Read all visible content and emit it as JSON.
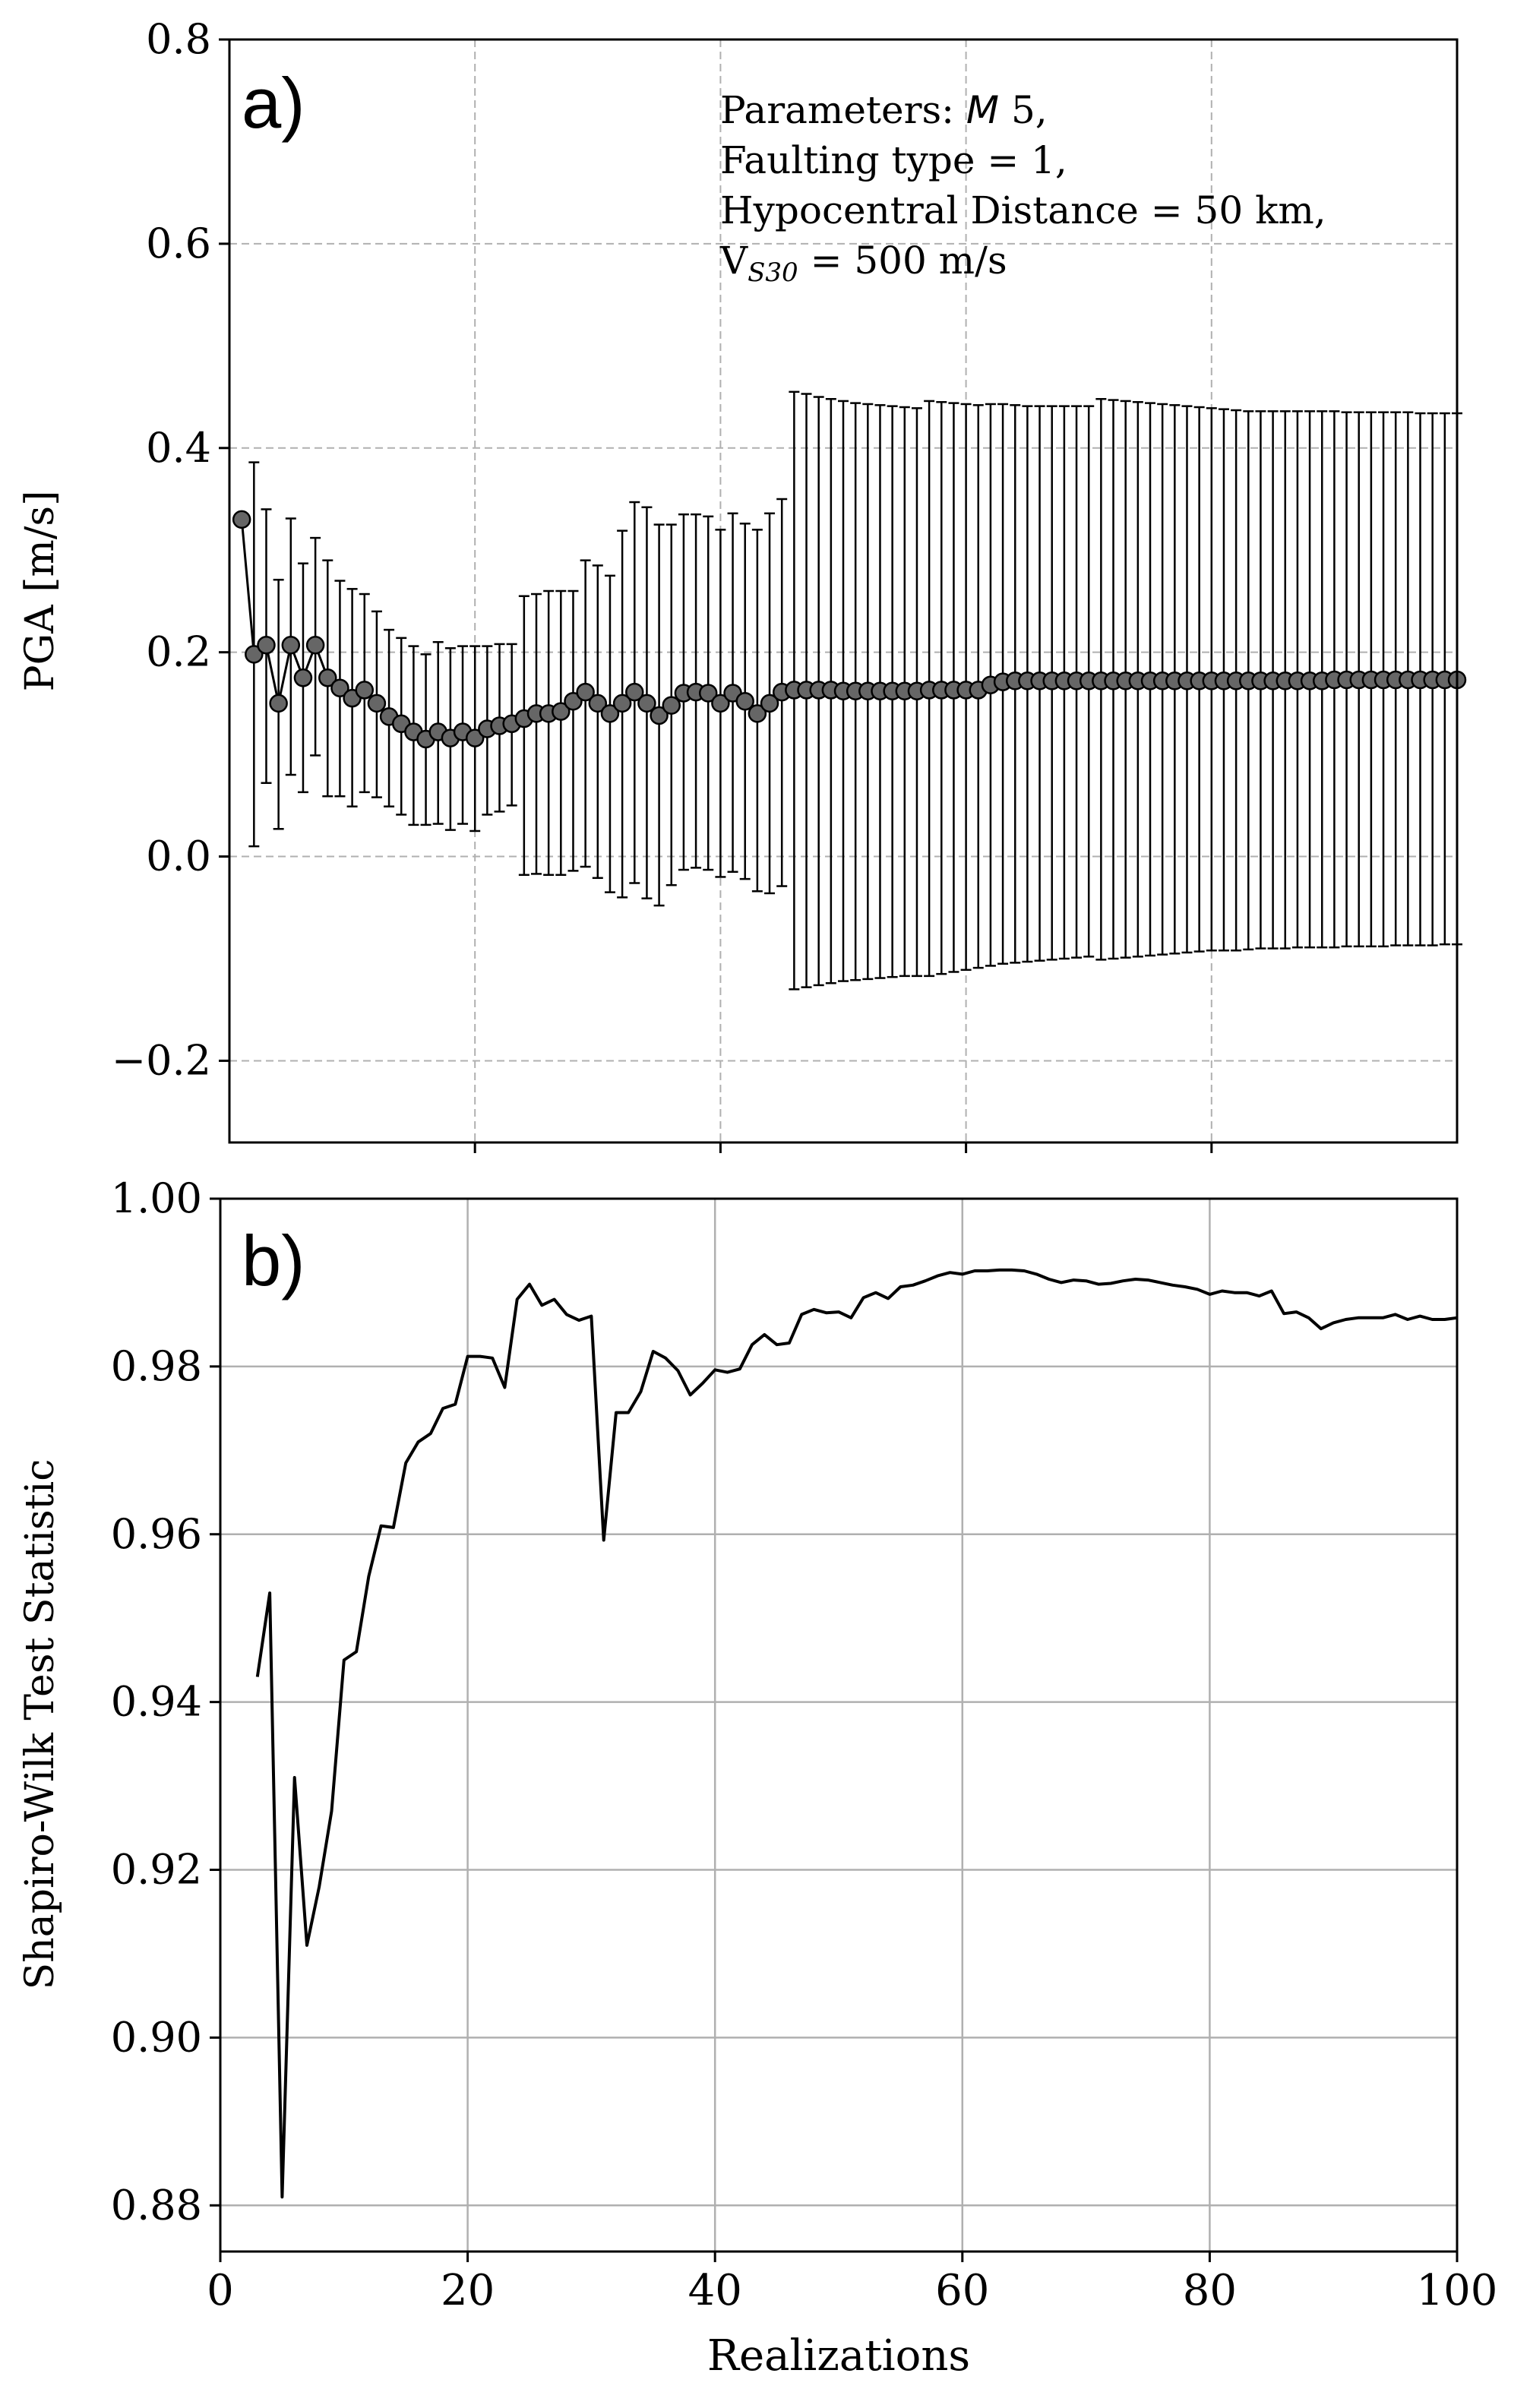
{
  "chart_data": [
    {
      "panel_label": "a)",
      "type": "line",
      "style": "errorbar",
      "xlabel": "",
      "ylabel": "PGA [m/s]",
      "xlim": [
        0,
        100
      ],
      "ylim": [
        -0.28,
        0.8
      ],
      "xticks": [
        20,
        40,
        60,
        80
      ],
      "yticks": [
        -0.2,
        0.0,
        0.2,
        0.4,
        0.6,
        0.8
      ],
      "ytick_labels": [
        "−0.2",
        "0.0",
        "0.2",
        "0.4",
        "0.6",
        "0.8"
      ],
      "grid": "dashed",
      "annotation": {
        "line1_prefix": "Parameters: ",
        "line1_symbol": "M",
        "line1_suffix": " 5,",
        "line2": "Faulting type = 1,",
        "line3": "Hypocentral Distance = 50 km,",
        "line4_base": "V",
        "line4_sub": "S30",
        "line4_rest": " = 500 m/s"
      },
      "colors": {
        "marker_fill": "#666666",
        "line": "#000000",
        "grid": "#b0b0b0"
      },
      "x": [
        1,
        2,
        3,
        4,
        5,
        6,
        7,
        8,
        9,
        10,
        11,
        12,
        13,
        14,
        15,
        16,
        17,
        18,
        19,
        20,
        21,
        22,
        23,
        24,
        25,
        26,
        27,
        28,
        29,
        30,
        31,
        32,
        33,
        34,
        35,
        36,
        37,
        38,
        39,
        40,
        41,
        42,
        43,
        44,
        45,
        46,
        47,
        48,
        49,
        50,
        51,
        52,
        53,
        54,
        55,
        56,
        57,
        58,
        59,
        60,
        61,
        62,
        63,
        64,
        65,
        66,
        67,
        68,
        69,
        70,
        71,
        72,
        73,
        74,
        75,
        76,
        77,
        78,
        79,
        80,
        81,
        82,
        83,
        84,
        85,
        86,
        87,
        88,
        89,
        90,
        91,
        92,
        93,
        94,
        95,
        96,
        97,
        98,
        99,
        100
      ],
      "mean": [
        0.33,
        0.198,
        0.207,
        0.15,
        0.207,
        0.175,
        0.207,
        0.175,
        0.165,
        0.155,
        0.163,
        0.15,
        0.137,
        0.13,
        0.122,
        0.115,
        0.122,
        0.116,
        0.122,
        0.116,
        0.125,
        0.128,
        0.13,
        0.135,
        0.14,
        0.14,
        0.142,
        0.152,
        0.161,
        0.15,
        0.14,
        0.15,
        0.161,
        0.15,
        0.138,
        0.148,
        0.16,
        0.161,
        0.16,
        0.15,
        0.16,
        0.152,
        0.14,
        0.15,
        0.161,
        0.163,
        0.163,
        0.163,
        0.163,
        0.162,
        0.162,
        0.162,
        0.162,
        0.162,
        0.162,
        0.162,
        0.163,
        0.163,
        0.163,
        0.163,
        0.163,
        0.168,
        0.171,
        0.172,
        0.172,
        0.172,
        0.172,
        0.172,
        0.172,
        0.172,
        0.172,
        0.172,
        0.172,
        0.172,
        0.172,
        0.172,
        0.172,
        0.172,
        0.172,
        0.172,
        0.172,
        0.172,
        0.172,
        0.172,
        0.172,
        0.172,
        0.172,
        0.172,
        0.172,
        0.173,
        0.173,
        0.173,
        0.173,
        0.173,
        0.173,
        0.173,
        0.173,
        0.173,
        0.173,
        0.173
      ],
      "upper": [
        null,
        0.386,
        0.34,
        0.271,
        0.331,
        0.287,
        0.312,
        0.29,
        0.27,
        0.262,
        0.257,
        0.24,
        0.222,
        0.214,
        0.206,
        0.198,
        0.21,
        0.204,
        0.206,
        0.206,
        0.206,
        0.208,
        0.208,
        0.255,
        0.257,
        0.26,
        0.26,
        0.26,
        0.29,
        0.285,
        0.275,
        0.319,
        0.347,
        0.342,
        0.325,
        0.325,
        0.335,
        0.335,
        0.333,
        0.32,
        0.336,
        0.326,
        0.32,
        0.336,
        0.35,
        0.455,
        0.453,
        0.45,
        0.448,
        0.446,
        0.444,
        0.443,
        0.442,
        0.441,
        0.44,
        0.439,
        0.446,
        0.445,
        0.444,
        0.443,
        0.442,
        0.443,
        0.443,
        0.442,
        0.441,
        0.441,
        0.441,
        0.441,
        0.441,
        0.441,
        0.448,
        0.447,
        0.446,
        0.445,
        0.444,
        0.443,
        0.442,
        0.441,
        0.44,
        0.439,
        0.438,
        0.437,
        0.436,
        0.436,
        0.436,
        0.436,
        0.436,
        0.436,
        0.436,
        0.436,
        0.435,
        0.435,
        0.435,
        0.435,
        0.435,
        0.435,
        0.434,
        0.434,
        0.434,
        0.434
      ],
      "lower": [
        null,
        0.01,
        0.072,
        0.027,
        0.08,
        0.063,
        0.099,
        0.059,
        0.059,
        0.049,
        0.063,
        0.058,
        0.049,
        0.041,
        0.031,
        0.031,
        0.032,
        0.026,
        0.032,
        0.025,
        0.041,
        0.044,
        0.05,
        -0.018,
        -0.017,
        -0.018,
        -0.018,
        -0.014,
        -0.01,
        -0.021,
        -0.035,
        -0.04,
        -0.026,
        -0.041,
        -0.048,
        -0.028,
        -0.013,
        -0.011,
        -0.013,
        -0.02,
        -0.015,
        -0.022,
        -0.034,
        -0.036,
        -0.029,
        -0.13,
        -0.128,
        -0.126,
        -0.124,
        -0.122,
        -0.121,
        -0.12,
        -0.119,
        -0.118,
        -0.117,
        -0.117,
        -0.117,
        -0.115,
        -0.113,
        -0.111,
        -0.109,
        -0.107,
        -0.105,
        -0.104,
        -0.103,
        -0.102,
        -0.101,
        -0.1,
        -0.099,
        -0.098,
        -0.101,
        -0.1,
        -0.099,
        -0.098,
        -0.097,
        -0.096,
        -0.095,
        -0.094,
        -0.093,
        -0.092,
        -0.092,
        -0.092,
        -0.091,
        -0.09,
        -0.09,
        -0.09,
        -0.089,
        -0.089,
        -0.089,
        -0.089,
        -0.088,
        -0.088,
        -0.088,
        -0.088,
        -0.087,
        -0.087,
        -0.087,
        -0.087,
        -0.086,
        -0.086
      ]
    },
    {
      "panel_label": "b)",
      "type": "line",
      "xlabel": "Realizations",
      "ylabel": "Shapiro-Wilk Test Statistic",
      "xlim": [
        0,
        100
      ],
      "ylim": [
        0.8745,
        1.0
      ],
      "xticks": [
        0,
        20,
        40,
        60,
        80,
        100
      ],
      "yticks": [
        0.88,
        0.9,
        0.92,
        0.94,
        0.96,
        0.98,
        1.0
      ],
      "ytick_labels": [
        "0.88",
        "0.90",
        "0.92",
        "0.94",
        "0.96",
        "0.98",
        "1.00"
      ],
      "grid": "solid",
      "colors": {
        "line": "#000000",
        "grid": "#b0b0b0"
      },
      "x": [
        3,
        4,
        5,
        6,
        7,
        8,
        9,
        10,
        11,
        12,
        13,
        14,
        15,
        16,
        17,
        18,
        19,
        20,
        21,
        22,
        23,
        24,
        25,
        26,
        27,
        28,
        29,
        30,
        31,
        32,
        33,
        34,
        35,
        36,
        37,
        38,
        39,
        40,
        41,
        42,
        43,
        44,
        45,
        46,
        47,
        48,
        49,
        50,
        51,
        52,
        53,
        54,
        55,
        56,
        57,
        58,
        59,
        60,
        61,
        62,
        63,
        64,
        65,
        66,
        67,
        68,
        69,
        70,
        71,
        72,
        73,
        74,
        75,
        76,
        77,
        78,
        79,
        80,
        81,
        82,
        83,
        84,
        85,
        86,
        87,
        88,
        89,
        90,
        91,
        92,
        93,
        94,
        95,
        96,
        97,
        98,
        99,
        100
      ],
      "values": [
        0.943,
        0.953,
        0.881,
        0.931,
        0.911,
        0.918,
        0.927,
        0.945,
        0.946,
        0.955,
        0.961,
        0.9608,
        0.9685,
        0.971,
        0.972,
        0.975,
        0.9755,
        0.9812,
        0.9812,
        0.981,
        0.9775,
        0.988,
        0.9898,
        0.9873,
        0.988,
        0.9862,
        0.9855,
        0.986,
        0.9593,
        0.9745,
        0.9745,
        0.977,
        0.9818,
        0.981,
        0.9795,
        0.9766,
        0.978,
        0.9796,
        0.9793,
        0.9797,
        0.9826,
        0.9838,
        0.9826,
        0.9828,
        0.9862,
        0.9868,
        0.9864,
        0.9865,
        0.9858,
        0.9882,
        0.9888,
        0.9881,
        0.9895,
        0.9897,
        0.9902,
        0.9908,
        0.9912,
        0.991,
        0.9914,
        0.9914,
        0.9915,
        0.9915,
        0.9914,
        0.991,
        0.9904,
        0.99,
        0.9903,
        0.9902,
        0.9898,
        0.9899,
        0.9902,
        0.9904,
        0.9903,
        0.99,
        0.9897,
        0.9895,
        0.9892,
        0.9886,
        0.989,
        0.9888,
        0.9888,
        0.9884,
        0.989,
        0.9863,
        0.9865,
        0.9858,
        0.9845,
        0.9852,
        0.9856,
        0.9858,
        0.9858,
        0.9858,
        0.9862,
        0.9856,
        0.986,
        0.9856,
        0.9856,
        0.9858
      ]
    }
  ]
}
